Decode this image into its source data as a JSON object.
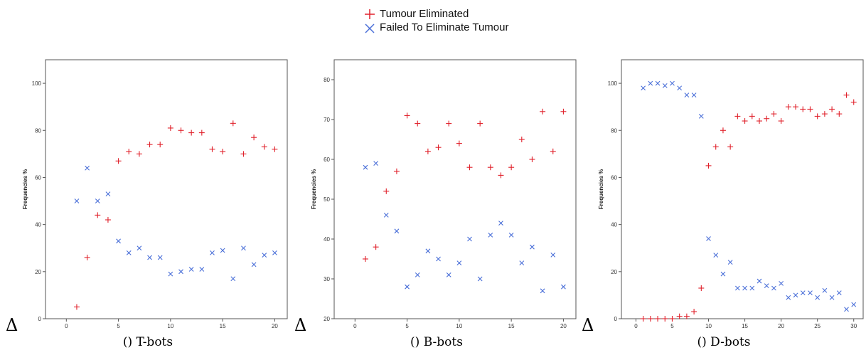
{
  "legend": {
    "eliminated_label": "Tumour Eliminated",
    "failed_label": "Failed To Eliminate Tumour",
    "eliminated_color": "#e0202a",
    "failed_color": "#4a6fd8"
  },
  "chart_data": [
    {
      "type": "scatter",
      "delta": "Δ",
      "caption": "() T-bots",
      "ylabel": "Frequencies %",
      "xlim": [
        -2,
        21.2
      ],
      "ylim": [
        0,
        110
      ],
      "xticks": [
        0,
        5,
        10,
        15,
        20
      ],
      "yticks": [
        0,
        20,
        40,
        60,
        80,
        100
      ],
      "series": [
        {
          "name": "Tumour Eliminated",
          "marker": "plus",
          "x": [
            1,
            2,
            3,
            4,
            5,
            6,
            7,
            8,
            9,
            10,
            11,
            12,
            13,
            14,
            15,
            16,
            17,
            18,
            19,
            20
          ],
          "y": [
            5,
            26,
            44,
            42,
            67,
            71,
            70,
            74,
            74,
            81,
            80,
            79,
            79,
            72,
            71,
            83,
            70,
            77,
            73,
            72
          ]
        },
        {
          "name": "Failed To Eliminate Tumour",
          "marker": "cross",
          "x": [
            1,
            2,
            3,
            4,
            5,
            6,
            7,
            8,
            9,
            10,
            11,
            12,
            13,
            14,
            15,
            16,
            17,
            18,
            19,
            20
          ],
          "y": [
            50,
            64,
            50,
            53,
            33,
            28,
            30,
            26,
            26,
            19,
            20,
            21,
            21,
            28,
            29,
            17,
            30,
            23,
            27,
            28
          ]
        }
      ]
    },
    {
      "type": "scatter",
      "delta": "Δ",
      "caption": "() B-bots",
      "ylabel": "Frequencies %",
      "xlim": [
        -2,
        21.2
      ],
      "ylim": [
        20,
        85
      ],
      "xticks": [
        0,
        5,
        10,
        15,
        20
      ],
      "yticks": [
        20,
        30,
        40,
        50,
        60,
        70,
        80
      ],
      "series": [
        {
          "name": "Tumour Eliminated",
          "marker": "plus",
          "x": [
            1,
            2,
            3,
            4,
            5,
            6,
            7,
            8,
            9,
            10,
            11,
            12,
            13,
            14,
            15,
            16,
            17,
            18,
            19,
            20
          ],
          "y": [
            35,
            38,
            52,
            57,
            71,
            69,
            62,
            63,
            69,
            64,
            58,
            69,
            58,
            56,
            58,
            65,
            60,
            72,
            62,
            72
          ]
        },
        {
          "name": "Failed To Eliminate Tumour",
          "marker": "cross",
          "x": [
            1,
            2,
            3,
            4,
            5,
            6,
            7,
            8,
            9,
            10,
            11,
            12,
            13,
            14,
            15,
            16,
            17,
            18,
            19,
            20
          ],
          "y": [
            58,
            59,
            46,
            42,
            28,
            31,
            37,
            35,
            31,
            34,
            40,
            30,
            41,
            44,
            41,
            34,
            38,
            27,
            36,
            28
          ]
        }
      ]
    },
    {
      "type": "scatter",
      "delta": "Δ",
      "caption": "() D-bots",
      "ylabel": "Frequencies %",
      "xlim": [
        -2,
        31.3
      ],
      "ylim": [
        0,
        110
      ],
      "xticks": [
        0,
        5,
        10,
        15,
        20,
        25,
        30
      ],
      "yticks": [
        0,
        20,
        40,
        60,
        80,
        100
      ],
      "series": [
        {
          "name": "Tumour Eliminated",
          "marker": "plus",
          "x": [
            1,
            2,
            3,
            4,
            5,
            6,
            7,
            8,
            9,
            10,
            11,
            12,
            13,
            14,
            15,
            16,
            17,
            18,
            19,
            20,
            21,
            22,
            23,
            24,
            25,
            26,
            27,
            28,
            29,
            30
          ],
          "y": [
            0,
            0,
            0,
            0,
            0,
            1,
            1,
            3,
            13,
            65,
            73,
            80,
            73,
            86,
            84,
            86,
            84,
            85,
            87,
            84,
            90,
            90,
            89,
            89,
            86,
            87,
            89,
            87,
            95,
            92
          ]
        },
        {
          "name": "Failed To Eliminate Tumour",
          "marker": "cross",
          "x": [
            1,
            2,
            3,
            4,
            5,
            6,
            7,
            8,
            9,
            10,
            11,
            12,
            13,
            14,
            15,
            16,
            17,
            18,
            19,
            20,
            21,
            22,
            23,
            24,
            25,
            26,
            27,
            28,
            29,
            30
          ],
          "y": [
            98,
            100,
            100,
            99,
            100,
            98,
            95,
            95,
            86,
            34,
            27,
            19,
            24,
            13,
            13,
            13,
            16,
            14,
            13,
            15,
            9,
            10,
            11,
            11,
            9,
            12,
            9,
            11,
            4,
            6
          ]
        }
      ]
    }
  ]
}
